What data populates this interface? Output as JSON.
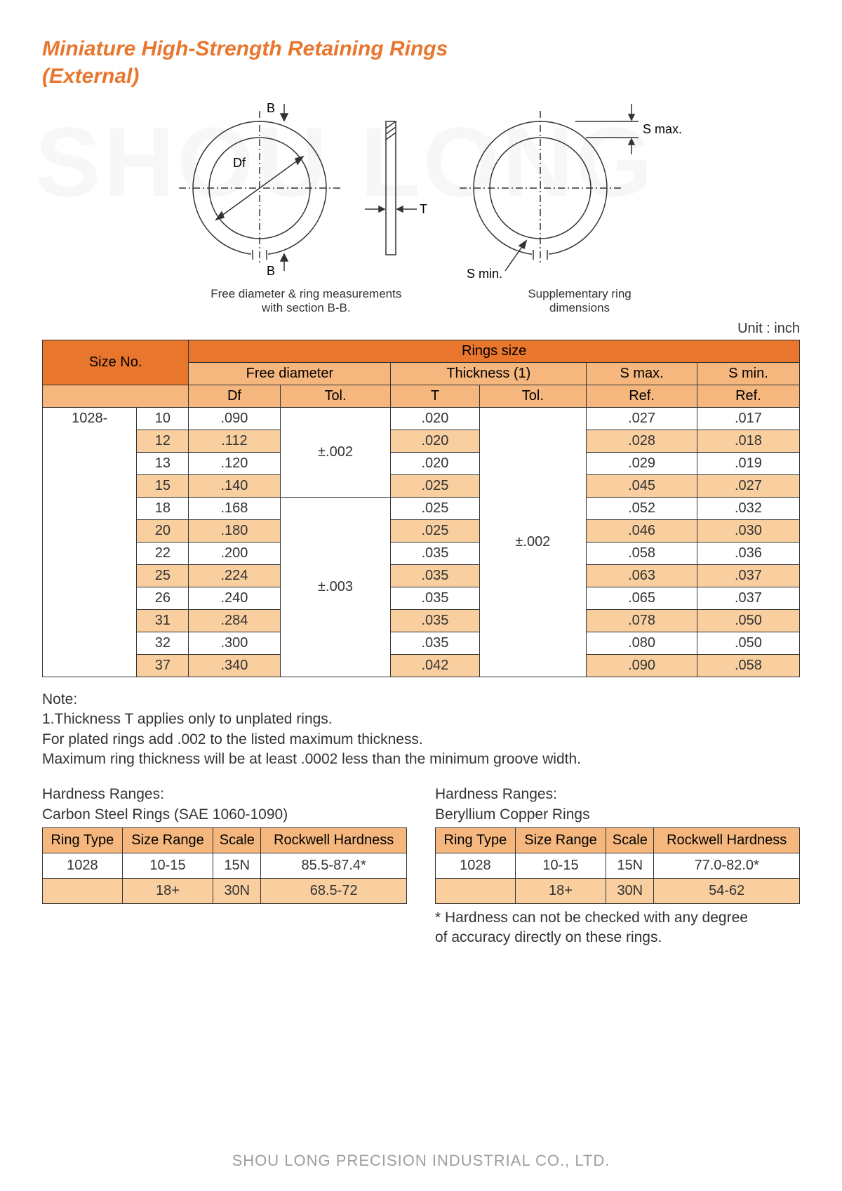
{
  "title_line1": "Miniature High-Strength Retaining Rings",
  "title_line2": "(External)",
  "watermark": "SHOU LONG",
  "diagram": {
    "label_B_top": "B",
    "label_B_bottom": "B",
    "label_Df": "Df",
    "label_T": "T",
    "label_Smax": "S max.",
    "label_Smin": "S min.",
    "caption_left_1": "Free diameter & ring measurements",
    "caption_left_2": "with section B-B.",
    "caption_right_1": "Supplementary ring",
    "caption_right_2": "dimensions"
  },
  "unit_label": "Unit : inch",
  "main_table": {
    "type": "table",
    "colors": {
      "header1": "#e8762d",
      "header2": "#f5b77d",
      "alt_row": "#f9cf9f",
      "border": "#333333"
    },
    "headers": {
      "size_no": "Size No.",
      "rings_size": "Rings size",
      "free_diameter": "Free diameter",
      "thickness": "Thickness (1)",
      "smax": "S max.",
      "smin": "S min.",
      "df": "Df",
      "tol1": "Tol.",
      "t": "T",
      "tol2": "Tol.",
      "ref1": "Ref.",
      "ref2": "Ref."
    },
    "series": "1028-",
    "tol_group1": "±.002",
    "tol_group2": "±.003",
    "thick_tol": "±.002",
    "rows": [
      {
        "size": "10",
        "df": ".090",
        "t": ".020",
        "smax": ".027",
        "smin": ".017",
        "alt": false
      },
      {
        "size": "12",
        "df": ".112",
        "t": ".020",
        "smax": ".028",
        "smin": ".018",
        "alt": true
      },
      {
        "size": "13",
        "df": ".120",
        "t": ".020",
        "smax": ".029",
        "smin": ".019",
        "alt": false
      },
      {
        "size": "15",
        "df": ".140",
        "t": ".025",
        "smax": ".045",
        "smin": ".027",
        "alt": true
      },
      {
        "size": "18",
        "df": ".168",
        "t": ".025",
        "smax": ".052",
        "smin": ".032",
        "alt": false
      },
      {
        "size": "20",
        "df": ".180",
        "t": ".025",
        "smax": ".046",
        "smin": ".030",
        "alt": true
      },
      {
        "size": "22",
        "df": ".200",
        "t": ".035",
        "smax": ".058",
        "smin": ".036",
        "alt": false
      },
      {
        "size": "25",
        "df": ".224",
        "t": ".035",
        "smax": ".063",
        "smin": ".037",
        "alt": true
      },
      {
        "size": "26",
        "df": ".240",
        "t": ".035",
        "smax": ".065",
        "smin": ".037",
        "alt": false
      },
      {
        "size": "31",
        "df": ".284",
        "t": ".035",
        "smax": ".078",
        "smin": ".050",
        "alt": true
      },
      {
        "size": "32",
        "df": ".300",
        "t": ".035",
        "smax": ".080",
        "smin": ".050",
        "alt": false
      },
      {
        "size": "37",
        "df": ".340",
        "t": ".042",
        "smax": ".090",
        "smin": ".058",
        "alt": true
      }
    ]
  },
  "notes": {
    "heading": "Note:",
    "line1": "1.Thickness T applies only to unplated rings.",
    "line2": "For plated rings add .002 to the listed maximum thickness.",
    "line3": "Maximum ring thickness will be at least .0002 less than the minimum groove width."
  },
  "hardness": {
    "left": {
      "title1": "Hardness Ranges:",
      "title2": "Carbon Steel Rings (SAE 1060-1090)",
      "headers": {
        "ring_type": "Ring Type",
        "size_range": "Size Range",
        "scale": "Scale",
        "rockwell": "Rockwell Hardness"
      },
      "rows": [
        {
          "ring_type": "1028",
          "size_range": "10-15",
          "scale": "15N",
          "hardness": "85.5-87.4*",
          "alt": false
        },
        {
          "ring_type": "",
          "size_range": "18+",
          "scale": "30N",
          "hardness": "68.5-72",
          "alt": true
        }
      ]
    },
    "right": {
      "title1": "Hardness Ranges:",
      "title2": "Beryllium Copper Rings",
      "headers": {
        "ring_type": "Ring Type",
        "size_range": "Size Range",
        "scale": "Scale",
        "rockwell": "Rockwell Hardness"
      },
      "rows": [
        {
          "ring_type": "1028",
          "size_range": "10-15",
          "scale": "15N",
          "hardness": "77.0-82.0*",
          "alt": false
        },
        {
          "ring_type": "",
          "size_range": "18+",
          "scale": "30N",
          "hardness": "54-62",
          "alt": true
        }
      ],
      "footnote1": "* Hardness can not be checked with any degree",
      "footnote2": "of accuracy directly on these rings."
    }
  },
  "footer": "SHOU LONG PRECISION INDUSTRIAL CO., LTD."
}
